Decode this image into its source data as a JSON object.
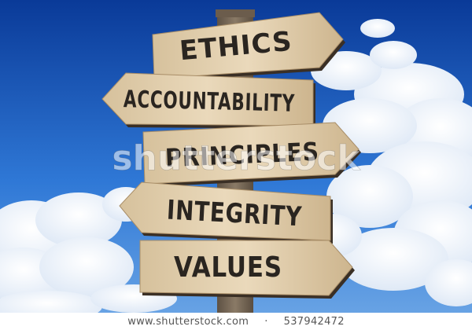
{
  "signs": [
    {
      "text": "ETHICS"
    },
    {
      "text": "ACCOUNTABILITY"
    },
    {
      "text": "PRINCIPLES"
    },
    {
      "text": "INTEGRITY"
    },
    {
      "text": "VALUES"
    }
  ],
  "watermark": {
    "text": "shutterstock"
  },
  "credit": {
    "site": "www.shutterstock.com",
    "separator": "·",
    "image_id": "537942472"
  },
  "colors": {
    "sky_top": "#0b3f9e",
    "sky_bottom": "#4f95e0",
    "wood_light": "#e3d3b4",
    "wood_dark": "#b89a72",
    "ink": "#2a2520",
    "post": "#7a6a58"
  }
}
